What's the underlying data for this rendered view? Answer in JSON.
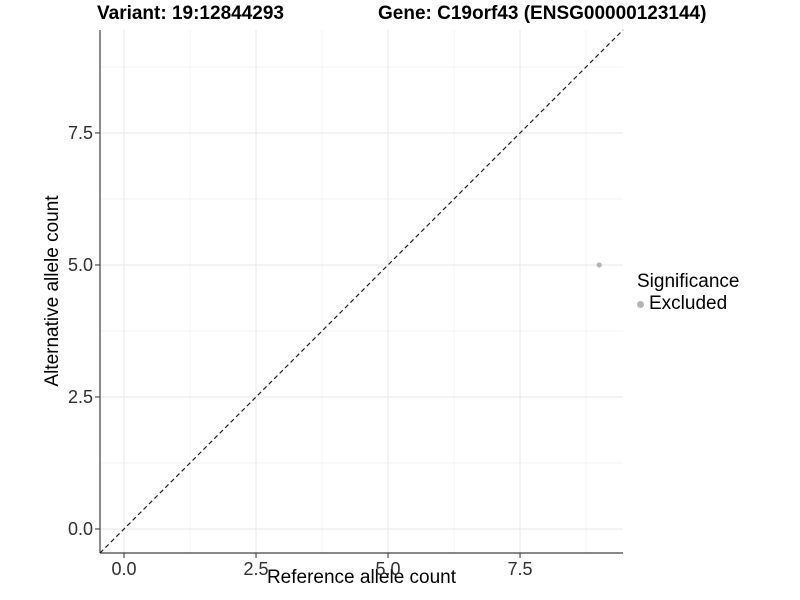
{
  "figure": {
    "title_left": "Variant: 19:12844293",
    "title_right": "Gene: C19orf43 (ENSG00000123144)"
  },
  "chart_data": {
    "type": "scatter",
    "title_left": "Variant: 19:12844293",
    "title_right": "Gene: C19orf43 (ENSG00000123144)",
    "xlabel": "Reference allele count",
    "ylabel": "Alternative allele count",
    "xlim": [
      -0.455,
      9.45
    ],
    "ylim": [
      -0.455,
      9.45
    ],
    "x_ticks": [
      {
        "value": 0,
        "label": "0.0"
      },
      {
        "value": 2.5,
        "label": "2.5"
      },
      {
        "value": 5,
        "label": "5.0"
      },
      {
        "value": 7.5,
        "label": "7.5"
      }
    ],
    "y_ticks": [
      {
        "value": 0,
        "label": "0.0"
      },
      {
        "value": 2.5,
        "label": "2.5"
      },
      {
        "value": 5,
        "label": "5.0"
      },
      {
        "value": 7.5,
        "label": "7.5"
      }
    ],
    "x_minor_ticks": [
      1.25,
      3.75,
      6.25,
      8.75
    ],
    "y_minor_ticks": [
      1.25,
      3.75,
      6.25,
      8.75
    ],
    "grid": "major+minor",
    "legend_position": "right",
    "series": [
      {
        "name": "Excluded",
        "color": "#b5b5b5",
        "points": [
          {
            "x": 9,
            "y": 5
          }
        ]
      }
    ],
    "reference_line": {
      "type": "abline",
      "slope": 1,
      "intercept": 0,
      "linetype": "dashed",
      "color": "#1f1f1f"
    },
    "legend": {
      "title": "Significance",
      "items": [
        {
          "label": "Excluded",
          "color": "#b5b5b5"
        }
      ]
    },
    "colors": {
      "major_grid": "#e7e7e7",
      "minor_grid": "#f2f2f2",
      "axis_line": "#404040",
      "tick_mark": "#404040",
      "panel_background": "#ffffff"
    }
  }
}
